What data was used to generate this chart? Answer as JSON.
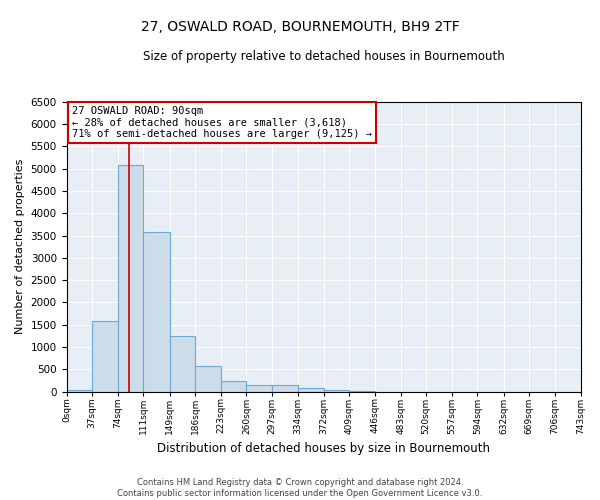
{
  "title": "27, OSWALD ROAD, BOURNEMOUTH, BH9 2TF",
  "subtitle": "Size of property relative to detached houses in Bournemouth",
  "xlabel": "Distribution of detached houses by size in Bournemouth",
  "ylabel": "Number of detached properties",
  "bar_color": "#ccdce8",
  "bar_edge_color": "#6aaad4",
  "background_color": "#e8eef5",
  "grid_color": "#ffffff",
  "annotation_box_color": "#cc0000",
  "property_line_color": "#cc0000",
  "property_size": 90,
  "annotation_line1": "27 OSWALD ROAD: 90sqm",
  "annotation_line2": "← 28% of detached houses are smaller (3,618)",
  "annotation_line3": "71% of semi-detached houses are larger (9,125) →",
  "footer_line1": "Contains HM Land Registry data © Crown copyright and database right 2024.",
  "footer_line2": "Contains public sector information licensed under the Open Government Licence v3.0.",
  "bin_edges": [
    0,
    37,
    74,
    111,
    149,
    186,
    223,
    260,
    297,
    334,
    372,
    409,
    446,
    483,
    520,
    557,
    594,
    632,
    669,
    706,
    743
  ],
  "bin_labels": [
    "0sqm",
    "37sqm",
    "74sqm",
    "111sqm",
    "149sqm",
    "186sqm",
    "223sqm",
    "260sqm",
    "297sqm",
    "334sqm",
    "372sqm",
    "409sqm",
    "446sqm",
    "483sqm",
    "520sqm",
    "557sqm",
    "594sqm",
    "632sqm",
    "669sqm",
    "706sqm",
    "743sqm"
  ],
  "bar_heights": [
    30,
    1580,
    5080,
    3580,
    1250,
    580,
    250,
    150,
    150,
    90,
    50,
    20,
    5,
    0,
    0,
    0,
    0,
    0,
    0,
    0
  ],
  "ylim": [
    0,
    6500
  ],
  "yticks": [
    0,
    500,
    1000,
    1500,
    2000,
    2500,
    3000,
    3500,
    4000,
    4500,
    5000,
    5500,
    6000,
    6500
  ]
}
